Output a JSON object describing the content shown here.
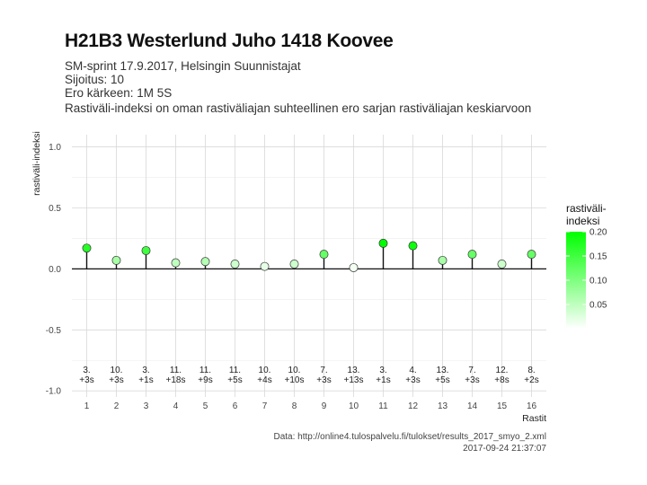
{
  "header": {
    "title": "H21B3 Westerlund Juho 1418 Koovee",
    "subtitle_lines": [
      "SM-sprint 17.9.2017, Helsingin Suunnistajat",
      "Sijoitus: 10",
      "Ero kärkeen: 1M 5S",
      "Rastiväli-indeksi on oman rastiväliajan suhteellinen ero sarjan rastiväliajan keskiarvoon"
    ]
  },
  "caption": {
    "source": "Data: http://online4.tulospalvelu.fi/tulokset/results_2017_smyo_2.xml",
    "timestamp": "2017-09-24 21:37:07"
  },
  "legend": {
    "title_line1": "rastiväli-",
    "title_line2": "indeksi",
    "ticks": [
      0.05,
      0.1,
      0.15,
      0.2
    ],
    "tick_labels": [
      "0.05",
      "0.10",
      "0.15",
      "0.20"
    ],
    "color_low": "#ffffff",
    "color_high": "#00ff00",
    "range": [
      0,
      0.2
    ]
  },
  "chart_data": {
    "type": "scatter",
    "subtype": "lollipop",
    "title": "H21B3 Westerlund Juho 1418 Koovee",
    "xlabel": "Rastit",
    "ylabel": "rastiväli-indeksi",
    "x": [
      1,
      2,
      3,
      4,
      5,
      6,
      7,
      8,
      9,
      10,
      11,
      12,
      13,
      14,
      15,
      16
    ],
    "x_tick_labels": [
      "1",
      "2",
      "3",
      "4",
      "5",
      "6",
      "7",
      "8",
      "9",
      "10",
      "11",
      "12",
      "13",
      "14",
      "15",
      "16"
    ],
    "values": [
      0.17,
      0.07,
      0.15,
      0.05,
      0.06,
      0.04,
      0.02,
      0.04,
      0.12,
      0.01,
      0.21,
      0.19,
      0.07,
      0.12,
      0.04,
      0.12
    ],
    "ylim": [
      -1.05,
      1.1
    ],
    "y_ticks": [
      -1.0,
      -0.5,
      0.0,
      0.5,
      1.0
    ],
    "y_tick_labels": [
      "-1.0",
      "-0.5",
      "0.0",
      "0.5",
      "1.0"
    ],
    "annotations_rank": [
      "3.",
      "10.",
      "3.",
      "11.",
      "11.",
      "11.",
      "10.",
      "10.",
      "7.",
      "13.",
      "3.",
      "4.",
      "13.",
      "7.",
      "12.",
      "8."
    ],
    "annotations_diff": [
      "+3s",
      "+3s",
      "+1s",
      "+18s",
      "+9s",
      "+5s",
      "+4s",
      "+10s",
      "+3s",
      "+13s",
      "+1s",
      "+3s",
      "+5s",
      "+3s",
      "+8s",
      "+2s"
    ],
    "grid": true,
    "legend_position": "right"
  }
}
